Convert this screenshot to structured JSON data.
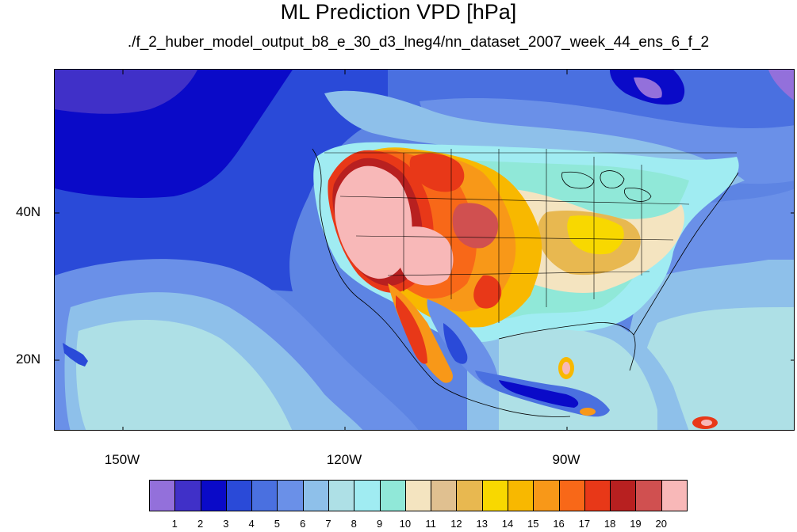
{
  "title": "ML Prediction VPD [hPa]",
  "subtitle": "./f_2_huber_model_output_b8_e_30_d3_lneg4/nn_dataset_2007_week_44_ens_6_f_2",
  "lat_labels": [
    "40N",
    "20N"
  ],
  "lon_labels": [
    "150W",
    "120W",
    "90W"
  ],
  "colorbar": {
    "colors": [
      "#9370db",
      "#4030c8",
      "#0a0ac8",
      "#2a4ad8",
      "#4a70e0",
      "#6a90e8",
      "#8ec0ea",
      "#aee0e6",
      "#a0ecf2",
      "#90e8d8",
      "#f4e4c0",
      "#e0c090",
      "#e8b850",
      "#f8d800",
      "#f8b800",
      "#f89818",
      "#f86818",
      "#e83818",
      "#b82020",
      "#d05050",
      "#f8b8b8"
    ],
    "labels": [
      "1",
      "2",
      "3",
      "4",
      "5",
      "6",
      "7",
      "8",
      "9",
      "10",
      "11",
      "12",
      "13",
      "14",
      "15",
      "16",
      "17",
      "18",
      "19",
      "20"
    ]
  }
}
